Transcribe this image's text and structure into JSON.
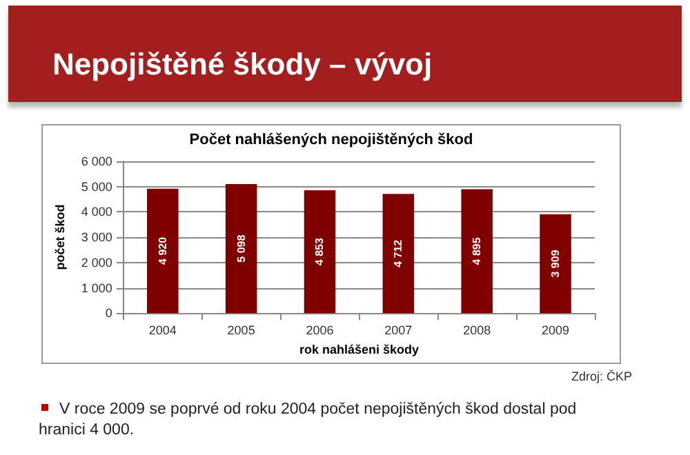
{
  "chart_data": {
    "type": "bar",
    "title": "Nepojištěné škody – vývoj",
    "subtitle": "Počet nahlášených nepojištěných škod",
    "xlabel": "rok nahlášeni škody",
    "ylabel": "počet škod",
    "categories": [
      "2004",
      "2005",
      "2006",
      "2007",
      "2008",
      "2009"
    ],
    "values": [
      4920,
      5098,
      4853,
      4712,
      4895,
      3909
    ],
    "value_labels": [
      "4 920",
      "5 098",
      "4 853",
      "4 712",
      "4 895",
      "3 909"
    ],
    "color": "#800000",
    "ylim": [
      0,
      6000
    ],
    "yticks": [
      {
        "value": 0,
        "label": "0"
      },
      {
        "value": 1000,
        "label": "1 000"
      },
      {
        "value": 2000,
        "label": "2 000"
      },
      {
        "value": 3000,
        "label": "3 000"
      },
      {
        "value": 4000,
        "label": "4 000"
      },
      {
        "value": 5000,
        "label": "5 000"
      },
      {
        "value": 6000,
        "label": "6 000"
      }
    ],
    "grid": "y",
    "annotations": [
      "Zdroj: ČKP",
      "V roce 2009 se poprvé od roku 2004 počet nepojištěných škod dostal pod hranici 4 000."
    ]
  }
}
